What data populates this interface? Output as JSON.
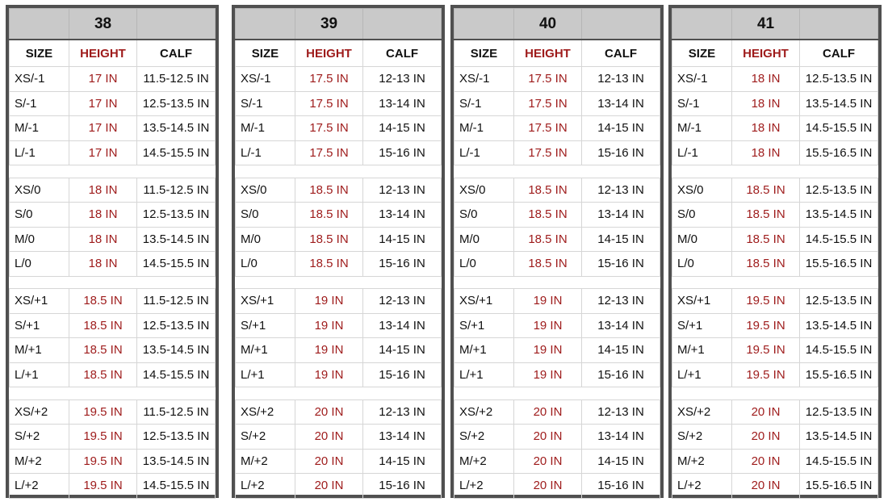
{
  "columns": {
    "size": "SIZE",
    "height": "HEIGHT",
    "calf": "CALF"
  },
  "charts": [
    {
      "title": "38",
      "groups": [
        [
          [
            "XS/-1",
            "17 IN",
            "11.5-12.5 IN"
          ],
          [
            "S/-1",
            "17 IN",
            "12.5-13.5 IN"
          ],
          [
            "M/-1",
            "17 IN",
            "13.5-14.5 IN"
          ],
          [
            "L/-1",
            "17 IN",
            "14.5-15.5 IN"
          ]
        ],
        [
          [
            "XS/0",
            "18 IN",
            "11.5-12.5 IN"
          ],
          [
            "S/0",
            "18 IN",
            "12.5-13.5 IN"
          ],
          [
            "M/0",
            "18 IN",
            "13.5-14.5 IN"
          ],
          [
            "L/0",
            "18 IN",
            "14.5-15.5 IN"
          ]
        ],
        [
          [
            "XS/+1",
            "18.5 IN",
            "11.5-12.5 IN"
          ],
          [
            "S/+1",
            "18.5 IN",
            "12.5-13.5 IN"
          ],
          [
            "M/+1",
            "18.5 IN",
            "13.5-14.5 IN"
          ],
          [
            "L/+1",
            "18.5 IN",
            "14.5-15.5 IN"
          ]
        ],
        [
          [
            "XS/+2",
            "19.5 IN",
            "11.5-12.5 IN"
          ],
          [
            "S/+2",
            "19.5 IN",
            "12.5-13.5 IN"
          ],
          [
            "M/+2",
            "19.5 IN",
            "13.5-14.5 IN"
          ],
          [
            "L/+2",
            "19.5 IN",
            "14.5-15.5 IN"
          ]
        ]
      ]
    },
    {
      "title": "39",
      "groups": [
        [
          [
            "XS/-1",
            "17.5 IN",
            "12-13 IN"
          ],
          [
            "S/-1",
            "17.5 IN",
            "13-14 IN"
          ],
          [
            "M/-1",
            "17.5 IN",
            "14-15 IN"
          ],
          [
            "L/-1",
            "17.5 IN",
            "15-16 IN"
          ]
        ],
        [
          [
            "XS/0",
            "18.5 IN",
            "12-13 IN"
          ],
          [
            "S/0",
            "18.5 IN",
            "13-14 IN"
          ],
          [
            "M/0",
            "18.5 IN",
            "14-15 IN"
          ],
          [
            "L/0",
            "18.5 IN",
            "15-16 IN"
          ]
        ],
        [
          [
            "XS/+1",
            "19 IN",
            "12-13 IN"
          ],
          [
            "S/+1",
            "19 IN",
            "13-14 IN"
          ],
          [
            "M/+1",
            "19 IN",
            "14-15 IN"
          ],
          [
            "L/+1",
            "19 IN",
            "15-16 IN"
          ]
        ],
        [
          [
            "XS/+2",
            "20 IN",
            "12-13 IN"
          ],
          [
            "S/+2",
            "20 IN",
            "13-14 IN"
          ],
          [
            "M/+2",
            "20 IN",
            "14-15 IN"
          ],
          [
            "L/+2",
            "20 IN",
            "15-16 IN"
          ]
        ]
      ]
    },
    {
      "title": "40",
      "groups": [
        [
          [
            "XS/-1",
            "17.5 IN",
            "12-13 IN"
          ],
          [
            "S/-1",
            "17.5 IN",
            "13-14 IN"
          ],
          [
            "M/-1",
            "17.5 IN",
            "14-15 IN"
          ],
          [
            "L/-1",
            "17.5 IN",
            "15-16 IN"
          ]
        ],
        [
          [
            "XS/0",
            "18.5 IN",
            "12-13 IN"
          ],
          [
            "S/0",
            "18.5 IN",
            "13-14 IN"
          ],
          [
            "M/0",
            "18.5 IN",
            "14-15 IN"
          ],
          [
            "L/0",
            "18.5 IN",
            "15-16 IN"
          ]
        ],
        [
          [
            "XS/+1",
            "19 IN",
            "12-13 IN"
          ],
          [
            "S/+1",
            "19 IN",
            "13-14 IN"
          ],
          [
            "M/+1",
            "19 IN",
            "14-15 IN"
          ],
          [
            "L/+1",
            "19 IN",
            "15-16 IN"
          ]
        ],
        [
          [
            "XS/+2",
            "20 IN",
            "12-13 IN"
          ],
          [
            "S/+2",
            "20 IN",
            "13-14 IN"
          ],
          [
            "M/+2",
            "20 IN",
            "14-15 IN"
          ],
          [
            "L/+2",
            "20 IN",
            "15-16 IN"
          ]
        ]
      ]
    },
    {
      "title": "41",
      "groups": [
        [
          [
            "XS/-1",
            "18 IN",
            "12.5-13.5 IN"
          ],
          [
            "S/-1",
            "18 IN",
            "13.5-14.5 IN"
          ],
          [
            "M/-1",
            "18 IN",
            "14.5-15.5 IN"
          ],
          [
            "L/-1",
            "18 IN",
            "15.5-16.5 IN"
          ]
        ],
        [
          [
            "XS/0",
            "18.5 IN",
            "12.5-13.5 IN"
          ],
          [
            "S/0",
            "18.5 IN",
            "13.5-14.5 IN"
          ],
          [
            "M/0",
            "18.5 IN",
            "14.5-15.5 IN"
          ],
          [
            "L/0",
            "18.5 IN",
            "15.5-16.5 IN"
          ]
        ],
        [
          [
            "XS/+1",
            "19.5 IN",
            "12.5-13.5 IN"
          ],
          [
            "S/+1",
            "19.5 IN",
            "13.5-14.5 IN"
          ],
          [
            "M/+1",
            "19.5 IN",
            "14.5-15.5 IN"
          ],
          [
            "L/+1",
            "19.5 IN",
            "15.5-16.5 IN"
          ]
        ],
        [
          [
            "XS/+2",
            "20 IN",
            "12.5-13.5 IN"
          ],
          [
            "S/+2",
            "20 IN",
            "13.5-14.5 IN"
          ],
          [
            "M/+2",
            "20 IN",
            "14.5-15.5 IN"
          ],
          [
            "L/+2",
            "20 IN",
            "15.5-16.5 IN"
          ]
        ]
      ]
    }
  ]
}
